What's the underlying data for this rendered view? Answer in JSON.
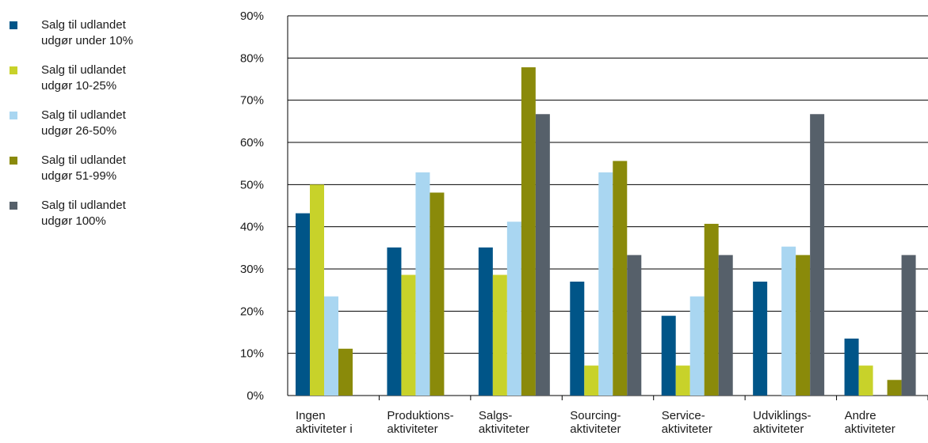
{
  "chart_data": {
    "type": "bar",
    "title": "",
    "xlabel": "",
    "ylabel": "",
    "ylim": [
      0,
      90
    ],
    "yticks": [
      "0%",
      "10%",
      "20%",
      "30%",
      "40%",
      "50%",
      "60%",
      "70%",
      "80%",
      "90%"
    ],
    "grid": true,
    "legend_position": "left",
    "categories": [
      [
        "Ingen",
        "aktiviteter i"
      ],
      [
        "Produktions-",
        "aktiviteter"
      ],
      [
        "Salgs-",
        "aktiviteter"
      ],
      [
        "Sourcing-",
        "aktiviteter"
      ],
      [
        "Service-",
        "aktiviteter"
      ],
      [
        "Udviklings-",
        "aktiviteter"
      ],
      [
        "Andre",
        "aktiviteter"
      ]
    ],
    "series": [
      {
        "name": "Salg til udlandet\nudgør under 10%",
        "color": "#005588",
        "values": [
          43.2,
          35.1,
          35.1,
          27.0,
          18.9,
          27.0,
          13.5
        ]
      },
      {
        "name": "Salg til udlandet\nudgør 10-25%",
        "color": "#c8d22a",
        "values": [
          50.0,
          28.6,
          28.6,
          7.1,
          7.1,
          0,
          7.1
        ]
      },
      {
        "name": "Salg til udlandet\nudgør 26-50%",
        "color": "#a9d6f1",
        "values": [
          23.5,
          52.9,
          41.2,
          52.9,
          23.5,
          35.3,
          0
        ]
      },
      {
        "name": "Salg til udlandet\nudgør 51-99%",
        "color": "#8a8a0a",
        "values": [
          11.1,
          48.1,
          77.8,
          55.6,
          40.7,
          33.3,
          3.7
        ]
      },
      {
        "name": "Salg til udlandet\nudgør 100%",
        "color": "#56606a",
        "values": [
          0,
          0,
          66.7,
          33.3,
          33.3,
          66.7,
          33.3
        ]
      }
    ]
  }
}
